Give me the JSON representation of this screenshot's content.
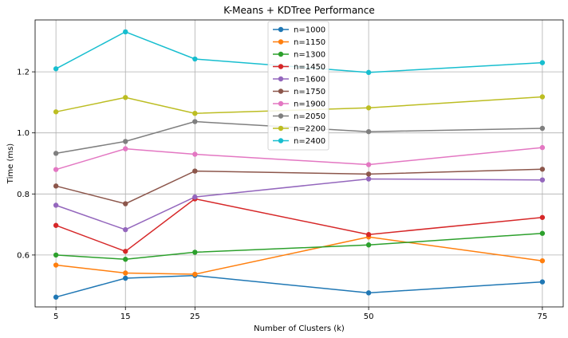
{
  "chart_data": {
    "type": "line",
    "title": "K-Means + KDTree Performance",
    "xlabel": "Number of Clusters (k)",
    "ylabel": "Time (ms)",
    "x": [
      5,
      15,
      25,
      50,
      75
    ],
    "xticks": [
      "5",
      "15",
      "25",
      "50",
      "75"
    ],
    "xlim": [
      2.0,
      78.0
    ],
    "yticks": [
      "0.6",
      "0.8",
      "1.0",
      "1.2"
    ],
    "ylim": [
      0.43,
      1.37
    ],
    "grid": true,
    "legend_position": "top-center",
    "series": [
      {
        "name": "n=1000",
        "color": "#1f77b4",
        "values": [
          0.462,
          0.524,
          0.533,
          0.476,
          0.512
        ]
      },
      {
        "name": "n=1150",
        "color": "#ff7f0e",
        "values": [
          0.567,
          0.541,
          0.537,
          0.659,
          0.581
        ]
      },
      {
        "name": "n=1300",
        "color": "#2ca02c",
        "values": [
          0.6,
          0.586,
          0.609,
          0.633,
          0.671
        ]
      },
      {
        "name": "n=1450",
        "color": "#d62728",
        "values": [
          0.697,
          0.612,
          0.784,
          0.667,
          0.723
        ]
      },
      {
        "name": "n=1600",
        "color": "#9467bd",
        "values": [
          0.763,
          0.683,
          0.79,
          0.849,
          0.846
        ]
      },
      {
        "name": "n=1750",
        "color": "#8c564b",
        "values": [
          0.826,
          0.768,
          0.875,
          0.865,
          0.881
        ]
      },
      {
        "name": "n=1900",
        "color": "#e377c2",
        "values": [
          0.88,
          0.948,
          0.93,
          0.896,
          0.952
        ]
      },
      {
        "name": "n=2050",
        "color": "#7f7f7f",
        "values": [
          0.933,
          0.972,
          1.037,
          1.004,
          1.015
        ]
      },
      {
        "name": "n=2200",
        "color": "#bcbd22",
        "values": [
          1.069,
          1.116,
          1.064,
          1.082,
          1.118
        ]
      },
      {
        "name": "n=2400",
        "color": "#17becf",
        "values": [
          1.21,
          1.331,
          1.242,
          1.198,
          1.23
        ]
      }
    ]
  }
}
